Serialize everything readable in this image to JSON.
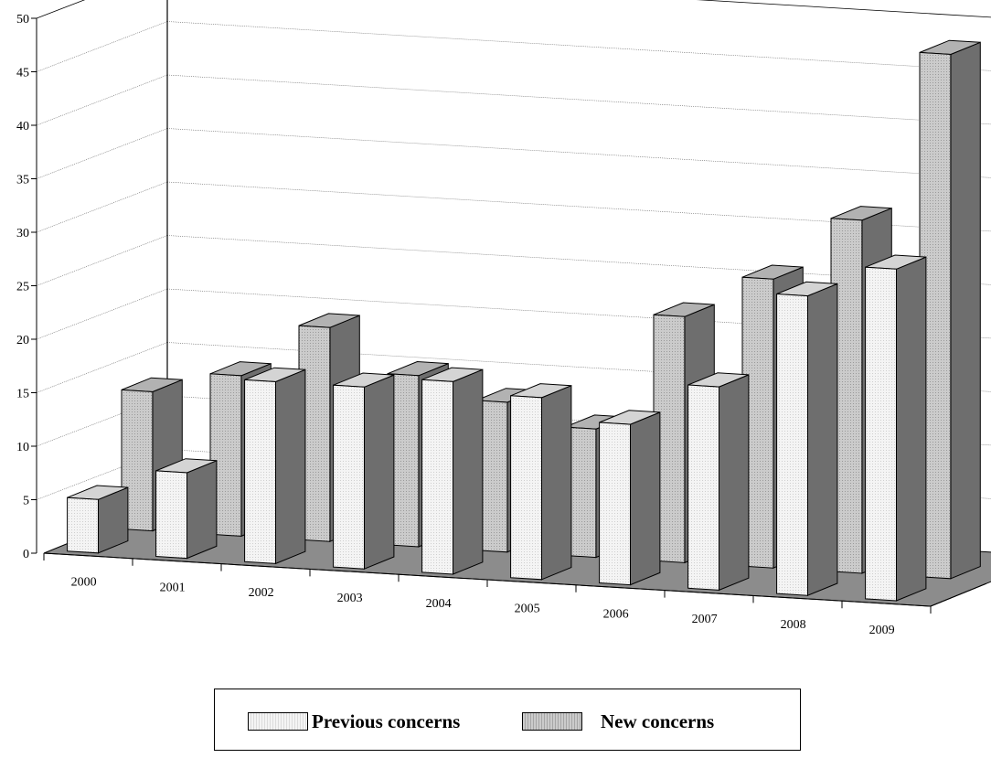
{
  "chart_data": {
    "type": "bar",
    "subtype": "3d-clustered-depth",
    "categories": [
      "2000",
      "2001",
      "2002",
      "2003",
      "2004",
      "2005",
      "2006",
      "2007",
      "2008",
      "2009"
    ],
    "series": [
      {
        "name": "Previous concerns",
        "values": [
          5,
          8,
          17,
          17,
          18,
          17,
          15,
          19,
          28,
          31
        ],
        "color": "#f3f3f3"
      },
      {
        "name": "New concerns",
        "values": [
          13,
          15,
          20,
          16,
          14,
          12,
          23,
          27,
          33,
          49
        ],
        "color": "#c8c8c8"
      }
    ],
    "ylim": [
      0,
      50
    ],
    "yticks": [
      "0",
      "5",
      "10",
      "15",
      "20",
      "25",
      "30",
      "35",
      "40",
      "45",
      "50"
    ],
    "grid": true,
    "legend_position": "bottom"
  },
  "colors": {
    "floor": "#8c8c8c",
    "side_shade": "#6e6e6e",
    "top_previous": "#d4d4d4",
    "top_new": "#b2b2b2"
  }
}
